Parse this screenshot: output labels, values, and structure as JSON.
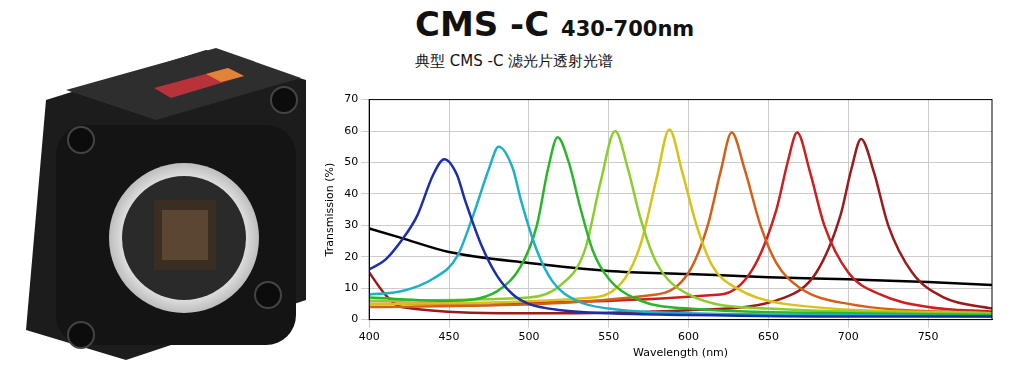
{
  "chart_data": {
    "type": "line",
    "title": "CMS -C 430-700nm",
    "subtitle": "典型 CMS -C 滤光片透射光谱",
    "x_label": "Wavelength (nm)",
    "y_label": "Transmission (%)",
    "xlim": [
      400,
      790
    ],
    "xticks": [
      400,
      450,
      500,
      550,
      600,
      650,
      700,
      750
    ],
    "ylim": [
      0,
      70
    ],
    "yticks": [
      0,
      10,
      20,
      30,
      40,
      50,
      60,
      70
    ],
    "grid": true,
    "series": [
      {
        "color": "#1a2fa8",
        "x": [
          400,
          410,
          420,
          430,
          440,
          447,
          455,
          460,
          470,
          480,
          490,
          500,
          520,
          550,
          600,
          700,
          790
        ],
        "values": [
          16,
          19,
          25,
          33,
          46,
          51,
          46,
          38,
          24,
          14,
          8,
          5,
          3,
          2,
          1.5,
          1,
          1
        ]
      },
      {
        "color": "#1fb0c8",
        "x": [
          400,
          420,
          440,
          455,
          465,
          475,
          481,
          490,
          495,
          505,
          515,
          530,
          550,
          600,
          700,
          790
        ],
        "values": [
          8,
          9,
          13,
          20,
          33,
          48,
          55,
          48,
          38,
          22,
          12,
          6,
          3.5,
          2,
          1.5,
          1
        ]
      },
      {
        "color": "#2bb52b",
        "x": [
          400,
          450,
          480,
          495,
          505,
          512,
          518,
          525,
          532,
          540,
          550,
          570,
          600,
          700,
          790
        ],
        "values": [
          7,
          6,
          9,
          17,
          30,
          48,
          58,
          50,
          36,
          22,
          13,
          6,
          3.5,
          2,
          1.5
        ]
      },
      {
        "color": "#8ccc2e",
        "x": [
          400,
          500,
          520,
          535,
          545,
          554,
          562,
          570,
          580,
          600,
          650,
          790
        ],
        "values": [
          6,
          7,
          11,
          22,
          44,
          60,
          48,
          32,
          18,
          8,
          3.5,
          2
        ]
      },
      {
        "color": "#d8c21a",
        "x": [
          400,
          540,
          560,
          570,
          580,
          588,
          596,
          605,
          615,
          630,
          660,
          790
        ],
        "values": [
          5,
          7,
          13,
          24,
          45,
          60.5,
          47,
          30,
          17,
          10,
          5,
          2
        ]
      },
      {
        "color": "#d2601a",
        "x": [
          400,
          580,
          600,
          612,
          620,
          627,
          635,
          645,
          655,
          670,
          700,
          790
        ],
        "values": [
          4,
          8,
          15,
          30,
          47,
          59.5,
          48,
          30,
          18,
          10,
          5,
          2
        ]
      },
      {
        "color": "#cc1f1f",
        "x": [
          400,
          620,
          640,
          655,
          662,
          668,
          676,
          685,
          700,
          720,
          750,
          790
        ],
        "values": [
          5,
          8,
          16,
          35,
          50,
          59.5,
          47,
          30,
          15,
          8,
          4,
          2.5
        ]
      },
      {
        "color": "#9b1a1a",
        "x": [
          400,
          410,
          420,
          500,
          600,
          660,
          680,
          695,
          702,
          708,
          716,
          725,
          740,
          760,
          790
        ],
        "values": [
          15,
          8,
          4,
          2,
          3,
          7,
          15,
          33,
          48,
          57.5,
          47,
          30,
          15,
          7,
          3.5
        ]
      },
      {
        "color": "#000000",
        "x": [
          400,
          420,
          450,
          500,
          550,
          600,
          650,
          700,
          750,
          790
        ],
        "values": [
          29,
          26,
          21.5,
          18,
          15.5,
          14.5,
          13.5,
          12.8,
          12,
          11
        ]
      }
    ]
  }
}
